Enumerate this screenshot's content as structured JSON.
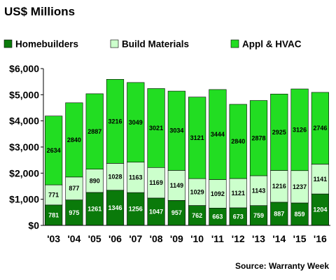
{
  "chart_data": {
    "type": "bar",
    "stacked": true,
    "title": "US$ Millions",
    "source": "Source: Warranty Week",
    "categories": [
      "'03",
      "'04",
      "'05",
      "'06",
      "'07",
      "'08",
      "'09",
      "'10",
      "'11",
      "'12",
      "'13",
      "'14",
      "'15",
      "'16"
    ],
    "series": [
      {
        "name": "Homebuilders",
        "color": "#0a7a0a",
        "values": [
          781,
          975,
          1261,
          1346,
          1256,
          1047,
          957,
          762,
          663,
          673,
          759,
          887,
          859,
          1204
        ]
      },
      {
        "name": "Build Materials",
        "color": "#ccffcc",
        "values": [
          771,
          877,
          890,
          1028,
          1163,
          1169,
          1149,
          1029,
          1092,
          1121,
          1143,
          1216,
          1237,
          1141
        ]
      },
      {
        "name": "Appl & HVAC",
        "color": "#22dd22",
        "values": [
          2634,
          2840,
          2887,
          3216,
          3049,
          3021,
          3034,
          3121,
          3444,
          2840,
          2878,
          2925,
          3126,
          2746
        ]
      }
    ],
    "yticks": [
      "$0",
      "$1,000",
      "$2,000",
      "$3,000",
      "$4,000",
      "$5,000",
      "$6,000"
    ],
    "ylim": [
      0,
      6000
    ],
    "grid": false,
    "legend_position": "top"
  }
}
